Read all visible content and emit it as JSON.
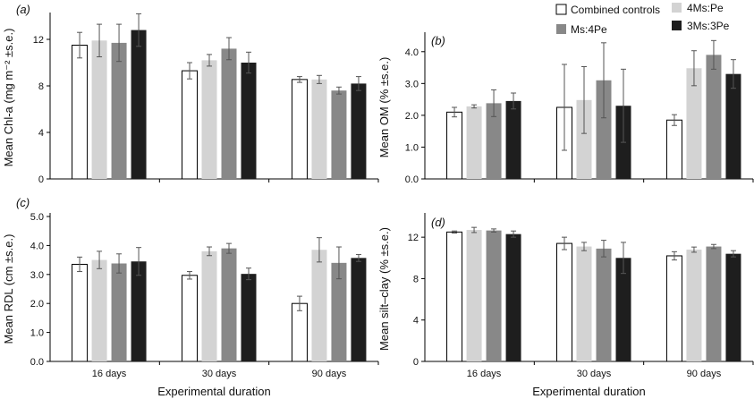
{
  "chart_data": [
    {
      "panel": "(a)",
      "type": "bar",
      "ylabel": "Mean Chl-a (mg m⁻² ±s.e.)",
      "xlabel": "",
      "ylim": [
        0,
        14
      ],
      "yticks": [
        "0",
        "4",
        "8",
        "12"
      ],
      "ytick_values": [
        0,
        4,
        8,
        12
      ],
      "categories": [
        "",
        "",
        ""
      ],
      "series": [
        {
          "name": "Combined controls",
          "values": [
            11.5,
            9.3,
            8.55
          ],
          "errors": [
            1.1,
            0.7,
            0.25
          ]
        },
        {
          "name": "4Ms:Pe",
          "values": [
            11.9,
            10.2,
            8.55
          ],
          "errors": [
            1.4,
            0.5,
            0.35
          ]
        },
        {
          "name": "Ms:4Pe",
          "values": [
            11.7,
            11.2,
            7.6
          ],
          "errors": [
            1.6,
            0.95,
            0.3
          ]
        },
        {
          "name": "3Ms:3Pe",
          "values": [
            12.8,
            10.0,
            8.2
          ],
          "errors": [
            1.4,
            0.9,
            0.6
          ]
        }
      ]
    },
    {
      "panel": "(b)",
      "type": "bar",
      "ylabel": "Mean OM (% ±s.e.)",
      "xlabel": "",
      "ylim": [
        0,
        4.5
      ],
      "yticks": [
        "0.0",
        "1.0",
        "2.0",
        "3.0",
        "4.0"
      ],
      "ytick_values": [
        0,
        1,
        2,
        3,
        4
      ],
      "categories": [
        "",
        "",
        ""
      ],
      "series": [
        {
          "name": "Combined controls",
          "values": [
            2.1,
            2.25,
            1.85
          ],
          "errors": [
            0.15,
            1.35,
            0.17
          ]
        },
        {
          "name": "4Ms:Pe",
          "values": [
            2.28,
            2.48,
            3.48
          ],
          "errors": [
            0.05,
            1.05,
            0.55
          ]
        },
        {
          "name": "Ms:4Pe",
          "values": [
            2.38,
            3.1,
            3.9
          ],
          "errors": [
            0.42,
            1.18,
            0.45
          ]
        },
        {
          "name": "3Ms:3Pe",
          "values": [
            2.45,
            2.3,
            3.3
          ],
          "errors": [
            0.25,
            1.15,
            0.45
          ]
        }
      ]
    },
    {
      "panel": "(c)",
      "type": "bar",
      "ylabel": "Mean RDL (cm ±s.e.)",
      "xlabel": "Experimental duration",
      "ylim": [
        0,
        5
      ],
      "yticks": [
        "0.0",
        "1.0",
        "2.0",
        "3.0",
        "4.0",
        "5.0"
      ],
      "ytick_values": [
        0,
        1,
        2,
        3,
        4,
        5
      ],
      "categories": [
        "16 days",
        "30 days",
        "90 days"
      ],
      "series": [
        {
          "name": "Combined controls",
          "values": [
            3.35,
            2.97,
            2.0
          ],
          "errors": [
            0.25,
            0.13,
            0.25
          ]
        },
        {
          "name": "4Ms:Pe",
          "values": [
            3.5,
            3.8,
            3.85
          ],
          "errors": [
            0.3,
            0.15,
            0.42
          ]
        },
        {
          "name": "Ms:4Pe",
          "values": [
            3.38,
            3.9,
            3.4
          ],
          "errors": [
            0.33,
            0.17,
            0.55
          ]
        },
        {
          "name": "3Ms:3Pe",
          "values": [
            3.45,
            3.02,
            3.57
          ],
          "errors": [
            0.48,
            0.2,
            0.12
          ]
        }
      ]
    },
    {
      "panel": "(d)",
      "type": "bar",
      "ylabel": "Mean silt–clay (% ±s.e.)",
      "xlabel": "Experimental duration",
      "ylim": [
        0,
        14
      ],
      "yticks": [
        "0",
        "4",
        "8",
        "12"
      ],
      "ytick_values": [
        0,
        4,
        8,
        12
      ],
      "categories": [
        "16 days",
        "30 days",
        "90 days"
      ],
      "series": [
        {
          "name": "Combined controls",
          "values": [
            12.5,
            11.4,
            10.2
          ],
          "errors": [
            0.1,
            0.6,
            0.4
          ]
        },
        {
          "name": "4Ms:Pe",
          "values": [
            12.7,
            11.1,
            10.8
          ],
          "errors": [
            0.25,
            0.4,
            0.25
          ]
        },
        {
          "name": "Ms:4Pe",
          "values": [
            12.65,
            10.9,
            11.1
          ],
          "errors": [
            0.15,
            0.8,
            0.2
          ]
        },
        {
          "name": "3Ms:3Pe",
          "values": [
            12.3,
            10.0,
            10.4
          ],
          "errors": [
            0.3,
            1.5,
            0.3
          ]
        }
      ]
    }
  ],
  "legend": {
    "position": "top-center",
    "items": [
      {
        "name": "Combined controls",
        "color": "#ffffff"
      },
      {
        "name": "4Ms:Pe",
        "color": "#d3d3d3"
      },
      {
        "name": "Ms:4Pe",
        "color": "#888888"
      },
      {
        "name": "3Ms:3Pe",
        "color": "#1e1e1e"
      }
    ]
  },
  "colors": [
    "#ffffff",
    "#d3d3d3",
    "#888888",
    "#1e1e1e"
  ]
}
